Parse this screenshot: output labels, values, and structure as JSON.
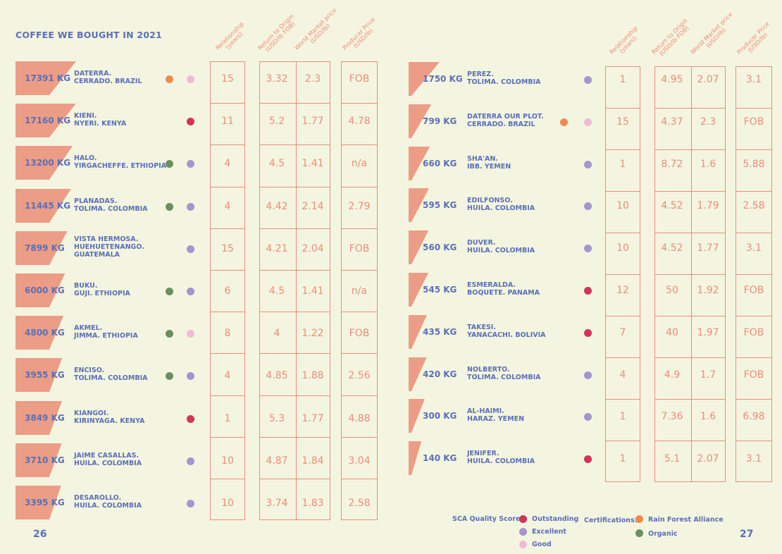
{
  "title": "COFFEE WE BOUGHT IN 2021",
  "page_left": "26",
  "page_right": "27",
  "column_headers": [
    [
      "Relationship",
      "(years)"
    ],
    [
      "Return to Origin",
      "(USD/lb FOB)"
    ],
    [
      "World Market price",
      "(USD/lb)"
    ],
    [
      "Producer Price",
      "(USD/lb)"
    ]
  ],
  "colors": {
    "outstanding": "#d2335a",
    "excellent": "#a196cf",
    "good": "#efbcd8",
    "rainforest": "#ef8a4e",
    "organic": "#6b8f62",
    "salmon": "#ec9d86",
    "line": "#ec8c7a"
  },
  "left_rows": [
    {
      "kg": "17391 KG",
      "farm": [
        "DATERRA.",
        "CERRADO. BRAZIL"
      ],
      "cert": "rainforest",
      "sca": "good",
      "rel": "15",
      "rto": "3.32",
      "wmp": "2.3",
      "pp": "FOB"
    },
    {
      "kg": "17160 KG",
      "farm": [
        "KIENI.",
        "NYERI. KENYA"
      ],
      "cert": "",
      "sca": "outstanding",
      "rel": "11",
      "rto": "5.2",
      "wmp": "1.77",
      "pp": "4.78"
    },
    {
      "kg": "13200 KG",
      "farm": [
        "HALO.",
        "YIRGACHEFFE. ETHIOPIA"
      ],
      "cert": "organic",
      "sca": "excellent",
      "rel": "4",
      "rto": "4.5",
      "wmp": "1.41",
      "pp": "n/a"
    },
    {
      "kg": "11445 KG",
      "farm": [
        "PLANADAS.",
        "TOLIMA. COLOMBIA"
      ],
      "cert": "organic",
      "sca": "excellent",
      "rel": "4",
      "rto": "4.42",
      "wmp": "2.14",
      "pp": "2.79"
    },
    {
      "kg": "7899 KG",
      "farm": [
        "VISTA HERMOSA.",
        "HUEHUETENANGO.",
        "GUATEMALA"
      ],
      "cert": "",
      "sca": "excellent",
      "rel": "15",
      "rto": "4.21",
      "wmp": "2.04",
      "pp": "FOB"
    },
    {
      "kg": "6000 KG",
      "farm": [
        "BUKU.",
        "GUJI. ETHIOPIA"
      ],
      "cert": "organic",
      "sca": "excellent",
      "rel": "6",
      "rto": "4.5",
      "wmp": "1.41",
      "pp": "n/a"
    },
    {
      "kg": "4800 KG",
      "farm": [
        "AKMEL.",
        "JIMMA. ETHIOPIA"
      ],
      "cert": "organic",
      "sca": "good",
      "rel": "8",
      "rto": "4",
      "wmp": "1.22",
      "pp": "FOB"
    },
    {
      "kg": "3955 KG",
      "farm": [
        "ENCISO.",
        "TOLIMA. COLOMBIA"
      ],
      "cert": "organic",
      "sca": "excellent",
      "rel": "4",
      "rto": "4.85",
      "wmp": "1.88",
      "pp": "2.56"
    },
    {
      "kg": "3849 KG",
      "farm": [
        "KIANGOI.",
        "KIRINYAGA. KENYA"
      ],
      "cert": "",
      "sca": "outstanding",
      "rel": "1",
      "rto": "5.3",
      "wmp": "1.77",
      "pp": "4.88"
    },
    {
      "kg": "3710 KG",
      "farm": [
        "JAIME CASALLAS.",
        "HUILA. COLOMBIA"
      ],
      "cert": "",
      "sca": "excellent",
      "rel": "10",
      "rto": "4.87",
      "wmp": "1.84",
      "pp": "3.04"
    },
    {
      "kg": "3395 KG",
      "farm": [
        "DESAROLLO.",
        "HUILA. COLOMBIA"
      ],
      "cert": "",
      "sca": "excellent",
      "rel": "10",
      "rto": "3.74",
      "wmp": "1.83",
      "pp": "2.58"
    }
  ],
  "right_rows": [
    {
      "kg": "1750 KG",
      "farm": [
        "PEREZ.",
        "TOLIMA. COLOMBIA"
      ],
      "cert": "",
      "sca": "excellent",
      "rel": "1",
      "rto": "4.95",
      "wmp": "2.07",
      "pp": "3.1"
    },
    {
      "kg": "799 KG",
      "farm": [
        "DATERRA OUR PLOT.",
        "CERRADO. BRAZIL"
      ],
      "cert": "rainforest",
      "sca": "good",
      "rel": "15",
      "rto": "4.37",
      "wmp": "2.3",
      "pp": "FOB"
    },
    {
      "kg": "660 KG",
      "farm": [
        "SHA'AN.",
        "IBB. YEMEN"
      ],
      "cert": "",
      "sca": "excellent",
      "rel": "1",
      "rto": "8.72",
      "wmp": "1.6",
      "pp": "5.88"
    },
    {
      "kg": "595 KG",
      "farm": [
        "EDILFONSO.",
        "HUILA. COLOMBIA"
      ],
      "cert": "",
      "sca": "excellent",
      "rel": "10",
      "rto": "4.52",
      "wmp": "1.79",
      "pp": "2.58"
    },
    {
      "kg": "560 KG",
      "farm": [
        "DUVER.",
        "HUILA. COLOMBIA"
      ],
      "cert": "",
      "sca": "excellent",
      "rel": "10",
      "rto": "4.52",
      "wmp": "1.77",
      "pp": "3.1"
    },
    {
      "kg": "545 KG",
      "farm": [
        "ESMERALDA.",
        "BOQUETE. PANAMA"
      ],
      "cert": "",
      "sca": "outstanding",
      "rel": "12",
      "rto": "50",
      "wmp": "1.92",
      "pp": "FOB"
    },
    {
      "kg": "435 KG",
      "farm": [
        "TAKESI.",
        "YANACACHI. BOLIVIA"
      ],
      "cert": "",
      "sca": "outstanding",
      "rel": "7",
      "rto": "40",
      "wmp": "1.97",
      "pp": "FOB"
    },
    {
      "kg": "420 KG",
      "farm": [
        "NOLBERTO.",
        "TOLIMA. COLOMBIA"
      ],
      "cert": "",
      "sca": "excellent",
      "rel": "4",
      "rto": "4.9",
      "wmp": "1.7",
      "pp": "FOB"
    },
    {
      "kg": "300 KG",
      "farm": [
        "AL-HAIMI.",
        "HARAZ. YEMEN"
      ],
      "cert": "",
      "sca": "excellent",
      "rel": "1",
      "rto": "7.36",
      "wmp": "1.6",
      "pp": "6.98"
    },
    {
      "kg": "140 KG",
      "farm": [
        "JENIFER.",
        "HUILA. COLOMBIA"
      ],
      "cert": "",
      "sca": "outstanding",
      "rel": "1",
      "rto": "5.1",
      "wmp": "2.07",
      "pp": "3.1"
    }
  ],
  "legend": {
    "sca_label": "SCA Quality Score:",
    "outstanding": "Outstanding",
    "excellent": "Excellent",
    "good": "Good",
    "cert_label": "Certifications:",
    "rainforest": "Rain Forest Alliance",
    "organic": "Organic"
  }
}
